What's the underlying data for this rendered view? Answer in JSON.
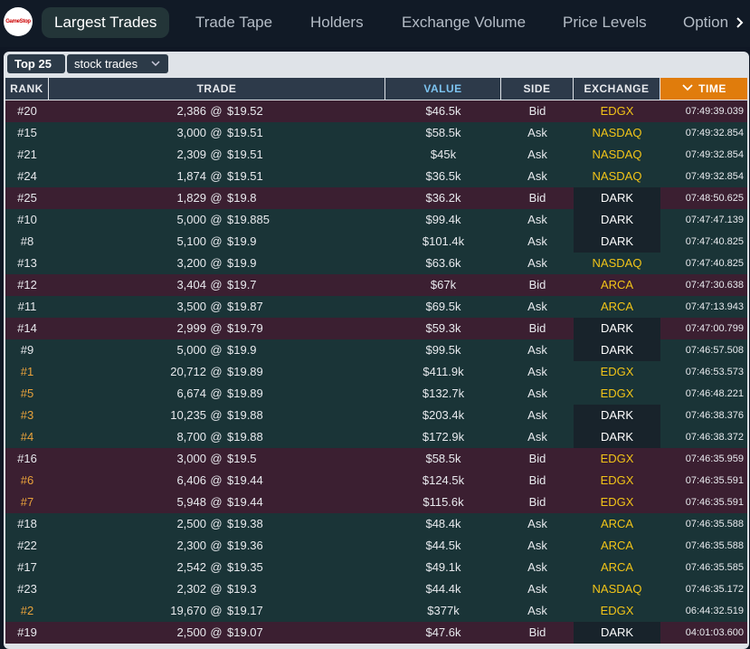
{
  "logo": "GameStop",
  "tabs": [
    "Largest Trades",
    "Trade Tape",
    "Holders",
    "Exchange Volume",
    "Price Levels",
    "Option"
  ],
  "active_tab": 0,
  "controls": {
    "limit": "Top 25",
    "filter": "stock trades"
  },
  "table": {
    "columns": [
      "RANK",
      "TRADE",
      "VALUE",
      "SIDE",
      "EXCHANGE",
      "TIME"
    ],
    "separator": "@",
    "row_colors": {
      "Bid": "#3b1f31",
      "Ask": "#1a3437"
    },
    "exchange_colors": {
      "EDGX": {
        "text": "#f2c418",
        "bg": ""
      },
      "NASDAQ": {
        "text": "#f2c418",
        "bg": ""
      },
      "ARCA": {
        "text": "#f2c418",
        "bg": ""
      },
      "DARK": {
        "text": "#ffffff",
        "bg": "#18232b"
      }
    },
    "top_rank_color": "#e9a23b",
    "rows": [
      {
        "rank": "#20",
        "shares": "2,386",
        "price": "$19.52",
        "value": "$46.5k",
        "side": "Bid",
        "exchange": "EDGX",
        "time": "07:49:39.039"
      },
      {
        "rank": "#15",
        "shares": "3,000",
        "price": "$19.51",
        "value": "$58.5k",
        "side": "Ask",
        "exchange": "NASDAQ",
        "time": "07:49:32.854"
      },
      {
        "rank": "#21",
        "shares": "2,309",
        "price": "$19.51",
        "value": "$45k",
        "side": "Ask",
        "exchange": "NASDAQ",
        "time": "07:49:32.854"
      },
      {
        "rank": "#24",
        "shares": "1,874",
        "price": "$19.51",
        "value": "$36.5k",
        "side": "Ask",
        "exchange": "NASDAQ",
        "time": "07:49:32.854"
      },
      {
        "rank": "#25",
        "shares": "1,829",
        "price": "$19.8",
        "value": "$36.2k",
        "side": "Bid",
        "exchange": "DARK",
        "time": "07:48:50.625"
      },
      {
        "rank": "#10",
        "shares": "5,000",
        "price": "$19.885",
        "value": "$99.4k",
        "side": "Ask",
        "exchange": "DARK",
        "time": "07:47:47.139"
      },
      {
        "rank": "#8",
        "shares": "5,100",
        "price": "$19.9",
        "value": "$101.4k",
        "side": "Ask",
        "exchange": "DARK",
        "time": "07:47:40.825"
      },
      {
        "rank": "#13",
        "shares": "3,200",
        "price": "$19.9",
        "value": "$63.6k",
        "side": "Ask",
        "exchange": "NASDAQ",
        "time": "07:47:40.825"
      },
      {
        "rank": "#12",
        "shares": "3,404",
        "price": "$19.7",
        "value": "$67k",
        "side": "Bid",
        "exchange": "ARCA",
        "time": "07:47:30.638"
      },
      {
        "rank": "#11",
        "shares": "3,500",
        "price": "$19.87",
        "value": "$69.5k",
        "side": "Ask",
        "exchange": "ARCA",
        "time": "07:47:13.943"
      },
      {
        "rank": "#14",
        "shares": "2,999",
        "price": "$19.79",
        "value": "$59.3k",
        "side": "Bid",
        "exchange": "DARK",
        "time": "07:47:00.799"
      },
      {
        "rank": "#9",
        "shares": "5,000",
        "price": "$19.9",
        "value": "$99.5k",
        "side": "Ask",
        "exchange": "DARK",
        "time": "07:46:57.508"
      },
      {
        "rank": "#1",
        "shares": "20,712",
        "price": "$19.89",
        "value": "$411.9k",
        "side": "Ask",
        "exchange": "EDGX",
        "time": "07:46:53.573",
        "top": true
      },
      {
        "rank": "#5",
        "shares": "6,674",
        "price": "$19.89",
        "value": "$132.7k",
        "side": "Ask",
        "exchange": "EDGX",
        "time": "07:46:48.221",
        "top": true
      },
      {
        "rank": "#3",
        "shares": "10,235",
        "price": "$19.88",
        "value": "$203.4k",
        "side": "Ask",
        "exchange": "DARK",
        "time": "07:46:38.376",
        "top": true
      },
      {
        "rank": "#4",
        "shares": "8,700",
        "price": "$19.88",
        "value": "$172.9k",
        "side": "Ask",
        "exchange": "DARK",
        "time": "07:46:38.372",
        "top": true
      },
      {
        "rank": "#16",
        "shares": "3,000",
        "price": "$19.5",
        "value": "$58.5k",
        "side": "Bid",
        "exchange": "EDGX",
        "time": "07:46:35.959"
      },
      {
        "rank": "#6",
        "shares": "6,406",
        "price": "$19.44",
        "value": "$124.5k",
        "side": "Bid",
        "exchange": "EDGX",
        "time": "07:46:35.591",
        "top": true
      },
      {
        "rank": "#7",
        "shares": "5,948",
        "price": "$19.44",
        "value": "$115.6k",
        "side": "Bid",
        "exchange": "EDGX",
        "time": "07:46:35.591",
        "top": true
      },
      {
        "rank": "#18",
        "shares": "2,500",
        "price": "$19.38",
        "value": "$48.4k",
        "side": "Ask",
        "exchange": "ARCA",
        "time": "07:46:35.588"
      },
      {
        "rank": "#22",
        "shares": "2,300",
        "price": "$19.36",
        "value": "$44.5k",
        "side": "Ask",
        "exchange": "ARCA",
        "time": "07:46:35.588"
      },
      {
        "rank": "#17",
        "shares": "2,542",
        "price": "$19.35",
        "value": "$49.1k",
        "side": "Ask",
        "exchange": "ARCA",
        "time": "07:46:35.585"
      },
      {
        "rank": "#23",
        "shares": "2,302",
        "price": "$19.3",
        "value": "$44.4k",
        "side": "Ask",
        "exchange": "NASDAQ",
        "time": "07:46:35.172"
      },
      {
        "rank": "#2",
        "shares": "19,670",
        "price": "$19.17",
        "value": "$377k",
        "side": "Ask",
        "exchange": "EDGX",
        "time": "06:44:32.519",
        "top": true
      },
      {
        "rank": "#19",
        "shares": "2,500",
        "price": "$19.07",
        "value": "$47.6k",
        "side": "Bid",
        "exchange": "DARK",
        "time": "04:01:03.600"
      }
    ]
  }
}
